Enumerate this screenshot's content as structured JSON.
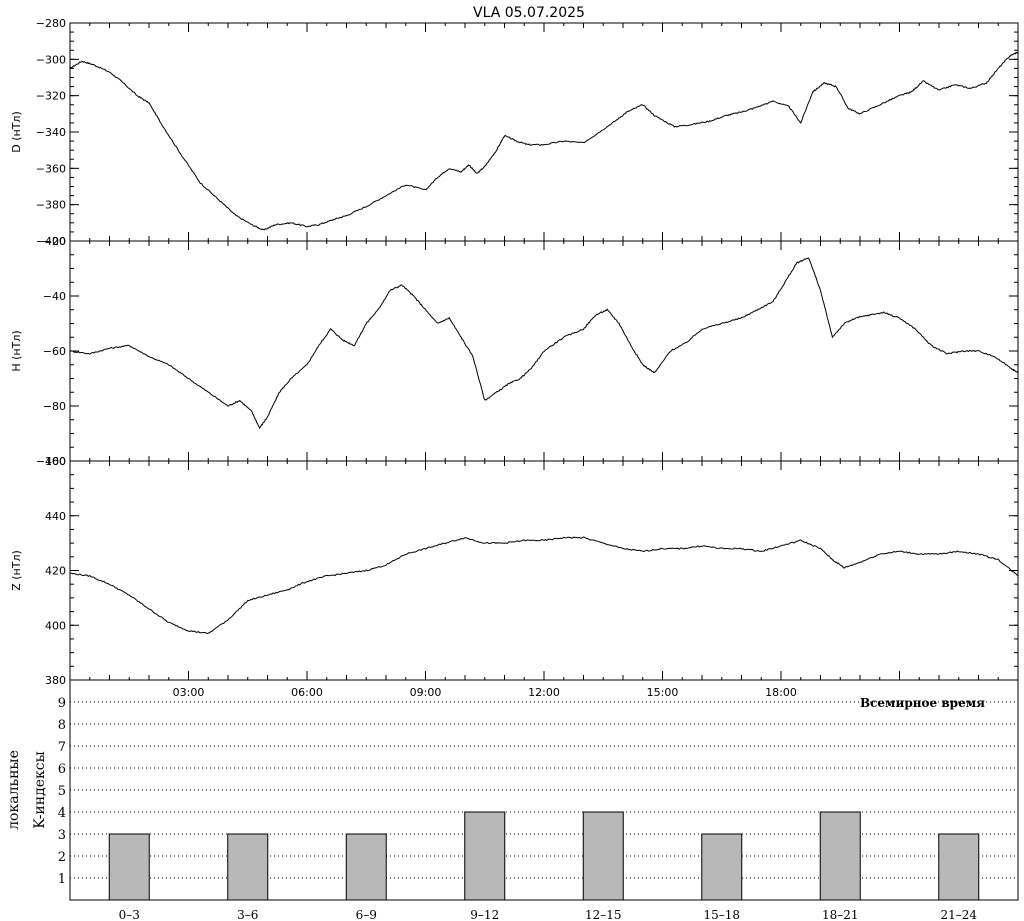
{
  "title": "VLA   05.07.2025",
  "chart_data": [
    {
      "type": "line",
      "ylabel": "D (нТл)",
      "ylim": [
        -400,
        -280
      ],
      "yticks": [
        -280,
        -300,
        -320,
        -340,
        -360,
        -380,
        -400
      ],
      "x_unit": "hours UT",
      "xlim": [
        0,
        24
      ],
      "series": [
        {
          "x": [
            0,
            0.3,
            0.6,
            1,
            1.3,
            1.7,
            2.0,
            2.3,
            2.8,
            3.3,
            3.8,
            4.2,
            4.6,
            4.9,
            5.2,
            5.6,
            6.0,
            6.3,
            6.7,
            7.0,
            7.5,
            8.0,
            8.5,
            9.0,
            9.3,
            9.6,
            9.9,
            10.1,
            10.3,
            10.5,
            10.8,
            11.0,
            11.3,
            11.6,
            12.0,
            12.5,
            13.0,
            13.4,
            13.8,
            14.1,
            14.5,
            14.8,
            15.3,
            15.7,
            16.2,
            16.6,
            17.0,
            17.3,
            17.8,
            18.2,
            18.5,
            18.8,
            19.1,
            19.4,
            19.7,
            20.0,
            20.5,
            21.0,
            21.3,
            21.6,
            22.0,
            22.4,
            22.8,
            23.2,
            23.5,
            23.8,
            24.0
          ],
          "y": [
            -305,
            -301,
            -303,
            -307,
            -312,
            -320,
            -324,
            -335,
            -352,
            -368,
            -378,
            -386,
            -391,
            -394,
            -391,
            -390,
            -392,
            -391,
            -388,
            -386,
            -381,
            -375,
            -369,
            -372,
            -365,
            -360,
            -362,
            -358,
            -363,
            -359,
            -350,
            -342,
            -345,
            -347,
            -347,
            -345,
            -346,
            -340,
            -334,
            -329,
            -325,
            -331,
            -337,
            -336,
            -334,
            -331,
            -329,
            -327,
            -323,
            -326,
            -335,
            -318,
            -313,
            -315,
            -327,
            -330,
            -325,
            -320,
            -318,
            -312,
            -317,
            -314,
            -316,
            -313,
            -305,
            -298,
            -296
          ]
        }
      ]
    },
    {
      "type": "line",
      "ylabel": "H (нТл)",
      "ylim": [
        -100,
        -20
      ],
      "yticks": [
        -20,
        -40,
        -60,
        -80,
        -100
      ],
      "x_unit": "hours UT",
      "xlim": [
        0,
        24
      ],
      "series": [
        {
          "x": [
            0,
            0.5,
            1,
            1.5,
            2,
            2.5,
            3,
            3.5,
            4,
            4.3,
            4.6,
            4.8,
            5.0,
            5.3,
            5.6,
            6.0,
            6.3,
            6.6,
            6.9,
            7.2,
            7.5,
            7.8,
            8.1,
            8.4,
            8.7,
            9.0,
            9.3,
            9.6,
            9.9,
            10.2,
            10.5,
            10.8,
            11.1,
            11.4,
            11.7,
            12.0,
            12.5,
            13.0,
            13.3,
            13.6,
            13.9,
            14.2,
            14.5,
            14.8,
            15.2,
            15.6,
            16.0,
            16.5,
            17.0,
            17.4,
            17.8,
            18.1,
            18.4,
            18.7,
            19.0,
            19.3,
            19.6,
            19.9,
            20.2,
            20.6,
            21.0,
            21.4,
            21.8,
            22.2,
            22.6,
            23.0,
            23.4,
            23.8,
            24.0
          ],
          "y": [
            -60,
            -61,
            -59,
            -58,
            -62,
            -65,
            -70,
            -75,
            -80,
            -78,
            -82,
            -88,
            -84,
            -75,
            -70,
            -65,
            -58,
            -52,
            -56,
            -58,
            -50,
            -45,
            -38,
            -36,
            -40,
            -45,
            -50,
            -48,
            -55,
            -62,
            -78,
            -75,
            -72,
            -70,
            -66,
            -60,
            -55,
            -52,
            -47,
            -45,
            -50,
            -58,
            -65,
            -68,
            -60,
            -57,
            -52,
            -50,
            -48,
            -45,
            -42,
            -35,
            -28,
            -26,
            -38,
            -55,
            -50,
            -48,
            -47,
            -46,
            -48,
            -52,
            -58,
            -61,
            -60,
            -60,
            -62,
            -66,
            -68
          ]
        }
      ]
    },
    {
      "type": "line",
      "ylabel": "Z (нТл)",
      "ylim": [
        380,
        460
      ],
      "yticks": [
        380,
        400,
        420,
        440,
        460
      ],
      "x_unit": "hours UT",
      "xlim": [
        0,
        24
      ],
      "series": [
        {
          "x": [
            0,
            0.5,
            1,
            1.5,
            2,
            2.5,
            3,
            3.5,
            4,
            4.5,
            5,
            5.5,
            6,
            6.5,
            7,
            7.5,
            8,
            8.5,
            9,
            9.5,
            10,
            10.5,
            11,
            11.5,
            12,
            12.5,
            13,
            13.5,
            14,
            14.5,
            15,
            15.5,
            16,
            16.5,
            17,
            17.5,
            18,
            18.5,
            19,
            19.3,
            19.6,
            20,
            20.5,
            21,
            21.5,
            22,
            22.5,
            23,
            23.5,
            24
          ],
          "y": [
            419,
            418,
            415,
            411,
            406,
            401,
            398,
            397,
            402,
            409,
            411,
            413,
            416,
            418,
            419,
            420,
            422,
            426,
            428,
            430,
            432,
            430,
            430,
            431,
            431,
            432,
            432,
            430,
            428,
            427,
            428,
            428,
            429,
            428,
            428,
            427,
            429,
            431,
            428,
            424,
            421,
            423,
            426,
            427,
            426,
            426,
            427,
            426,
            424,
            418
          ]
        }
      ]
    },
    {
      "type": "bar",
      "ylabel_lines": [
        "локальные",
        "K-индексы"
      ],
      "xlabel": "Всемирное время",
      "x_ticks": [
        "03:00",
        "06:00",
        "09:00",
        "12:00",
        "15:00",
        "18:00"
      ],
      "yticks": [
        1,
        2,
        3,
        4,
        5,
        6,
        7,
        8,
        9
      ],
      "ylim": [
        0,
        10
      ],
      "categories": [
        "0–3",
        "3–6",
        "6–9",
        "9–12",
        "12–15",
        "15–18",
        "18–21",
        "21–24"
      ],
      "values": [
        3,
        3,
        3,
        4,
        4,
        3,
        4,
        3
      ],
      "bar_color": "#b8b8b8"
    }
  ]
}
